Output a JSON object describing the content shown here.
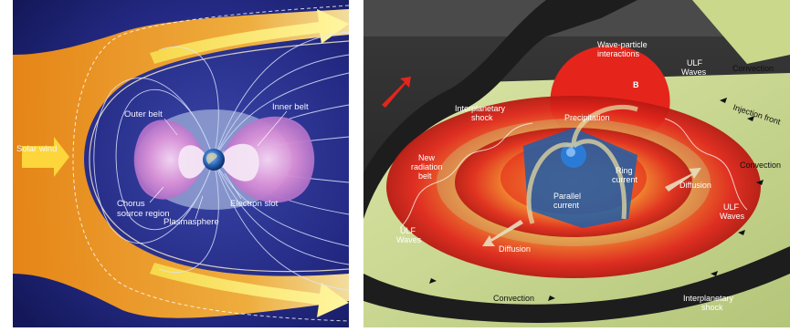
{
  "left": {
    "labels": {
      "solar_wind": "Solar wind",
      "outer_belt": "Outer belt",
      "inner_belt": "Inner belt",
      "chorus": "Chorus",
      "source_region": "source region",
      "electron_slot": "Electron slot",
      "plasmasphere": "Plasmasphere"
    }
  },
  "right": {
    "labels": {
      "wave_particle_1": "Wave-particle",
      "wave_particle_2": "interactions",
      "ulf_waves_top_1": "ULF",
      "ulf_waves_top_2": "Waves",
      "convection_top": "Convection",
      "injection_front": "Injection front",
      "interplanetary_shock_top_1": "Interplanetary",
      "interplanetary_shock_top_2": "shock",
      "b_label": "B",
      "precipitation": "Precipitation",
      "new_radiation_belt_1": "New",
      "new_radiation_belt_2": "radiation",
      "new_radiation_belt_3": "belt",
      "convection_right": "Convection",
      "ring_current_1": "Ring",
      "ring_current_2": "current",
      "diffusion_right": "Diffusion",
      "parallel_current_1": "Parallel",
      "parallel_current_2": "current",
      "ulf_waves_right_1": "ULF",
      "ulf_waves_right_2": "Waves",
      "ulf_waves_left_1": "ULF",
      "ulf_waves_left_2": "Waves",
      "diffusion_bottom": "Diffusion",
      "convection_bottom": "Convection",
      "interplanetary_shock_bottom_1": "Interplanetary",
      "interplanetary_shock_bottom_2": "shock"
    }
  },
  "colors": {
    "left_background": "#1c1f6e",
    "solar_wind": "#f6a11a",
    "outer_belt": "#e7b7e6",
    "plasmasphere": "#c8d8f0",
    "right_background": "#2a2a2a",
    "plane": "#c9d88a",
    "belt_red": "#e5251b",
    "belt_orange": "#f3922b",
    "belt_yellow": "#f7e04a",
    "ring_blue": "#1e5fa8"
  }
}
